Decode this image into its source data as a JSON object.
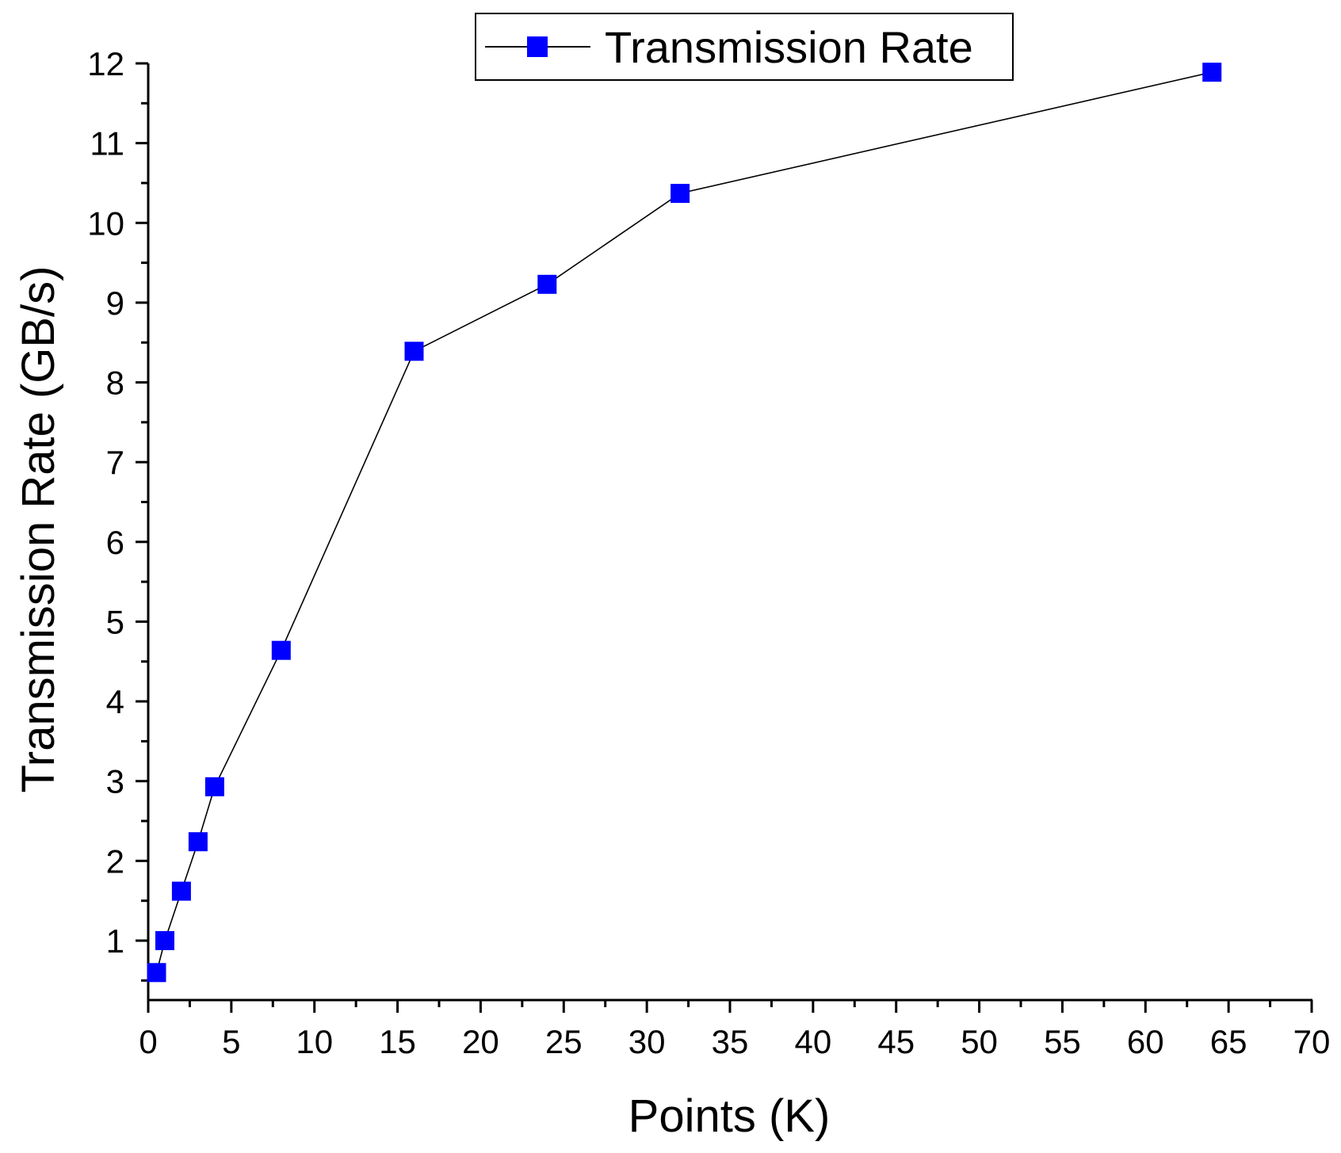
{
  "chart_data": {
    "type": "line",
    "title": "",
    "xlabel": "Points (K)",
    "ylabel": "Transmission Rate (GB/s)",
    "xlim": [
      0,
      70
    ],
    "ylim": [
      0.2,
      12
    ],
    "x_ticks": [
      0,
      5,
      10,
      15,
      20,
      25,
      30,
      35,
      40,
      45,
      50,
      55,
      60,
      65,
      70
    ],
    "y_ticks": [
      1,
      2,
      3,
      4,
      5,
      6,
      7,
      8,
      9,
      10,
      11,
      12
    ],
    "grid": false,
    "legend_position": "top-center",
    "series": [
      {
        "name": "Transmission Rate",
        "marker": "square",
        "marker_color": "#0000ff",
        "line_color": "#000000",
        "points": [
          {
            "x": 0.5,
            "y": 0.6
          },
          {
            "x": 1,
            "y": 1.0
          },
          {
            "x": 2,
            "y": 1.62
          },
          {
            "x": 3,
            "y": 2.24
          },
          {
            "x": 4,
            "y": 2.93
          },
          {
            "x": 8,
            "y": 4.64
          },
          {
            "x": 16,
            "y": 8.39
          },
          {
            "x": 24,
            "y": 9.23
          },
          {
            "x": 32,
            "y": 10.37
          },
          {
            "x": 64,
            "y": 11.89
          }
        ]
      }
    ]
  }
}
